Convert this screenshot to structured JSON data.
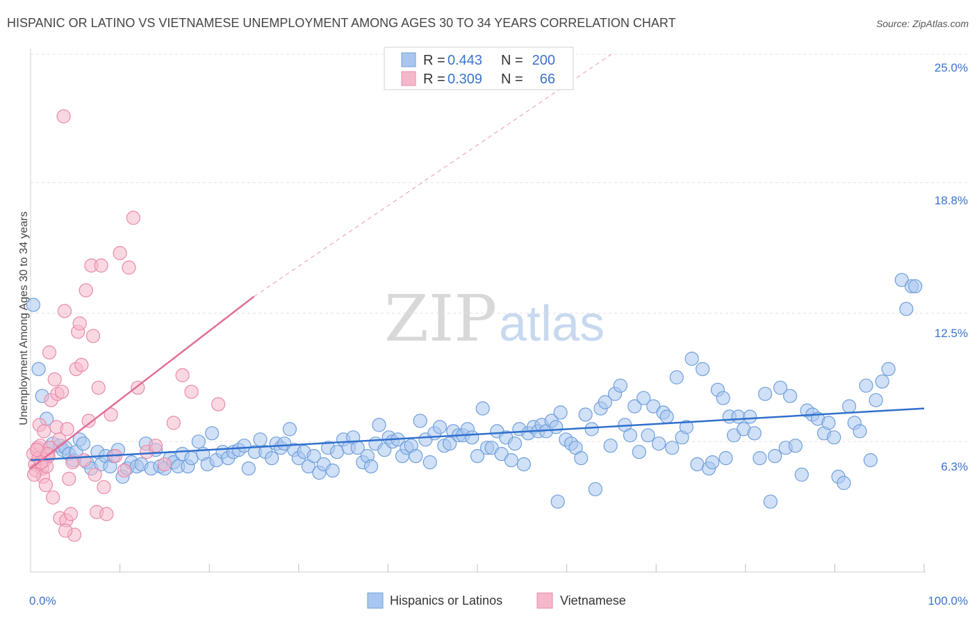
{
  "chart_data": {
    "type": "scatter",
    "title": "HISPANIC OR LATINO VS VIETNAMESE UNEMPLOYMENT AMONG AGES 30 TO 34 YEARS CORRELATION CHART",
    "source": "Source: ZipAtlas.com",
    "ylabel": "Unemployment Among Ages 30 to 34 years",
    "xlim": [
      0,
      100
    ],
    "ylim": [
      0,
      25.0
    ],
    "y_ticks": [
      {
        "value": 25.0,
        "label": "25.0%"
      },
      {
        "value": 18.8,
        "label": "18.8%"
      },
      {
        "value": 12.5,
        "label": "12.5%"
      },
      {
        "value": 6.3,
        "label": "6.3%"
      }
    ],
    "x_tick_labels": {
      "min": "0.0%",
      "max": "100.0%"
    },
    "watermark": {
      "zip": "ZIP",
      "atlas": "atlas"
    },
    "colors": {
      "blue_fill": "#a9c6ee",
      "blue_stroke": "#6f9fdc",
      "blue_line": "#2f6fcc",
      "pink_fill": "#f5b8cb",
      "pink_stroke": "#e88aa8",
      "pink_line": "#e26d97",
      "accent_text": "#3a73c9"
    },
    "legend_box": {
      "rows": [
        {
          "r_label": "R =",
          "r_value": "0.443",
          "n_label": "N =",
          "n_value": "200"
        },
        {
          "r_label": "R =",
          "r_value": "0.309",
          "n_label": "N =",
          "n_value": "66"
        }
      ]
    },
    "series": [
      {
        "name": "Hispanics or Latinos",
        "color_key": "blue",
        "trend": {
          "x0": 0,
          "y0": 5.4,
          "x1": 100,
          "y1": 7.9
        },
        "points": [
          [
            0.3,
            12.9
          ],
          [
            0.9,
            9.8
          ],
          [
            1.3,
            8.5
          ],
          [
            1.8,
            7.4
          ],
          [
            2.1,
            6.0
          ],
          [
            2.5,
            6.2
          ],
          [
            3.3,
            6.1
          ],
          [
            3.6,
            5.9
          ],
          [
            3.9,
            6.0
          ],
          [
            4.3,
            5.7
          ],
          [
            4.8,
            5.4
          ],
          [
            5.1,
            5.8
          ],
          [
            5.5,
            6.4
          ],
          [
            5.9,
            6.2
          ],
          [
            6.3,
            5.3
          ],
          [
            6.8,
            5.0
          ],
          [
            7.5,
            5.8
          ],
          [
            7.9,
            5.2
          ],
          [
            8.4,
            5.6
          ],
          [
            8.9,
            5.1
          ],
          [
            9.3,
            5.6
          ],
          [
            9.8,
            5.9
          ],
          [
            10.3,
            4.6
          ],
          [
            10.8,
            5.0
          ],
          [
            11.3,
            5.3
          ],
          [
            11.9,
            5.1
          ],
          [
            12.4,
            5.2
          ],
          [
            12.9,
            6.2
          ],
          [
            13.5,
            5.0
          ],
          [
            14.0,
            5.9
          ],
          [
            14.5,
            5.1
          ],
          [
            15.0,
            5.0
          ],
          [
            15.6,
            5.5
          ],
          [
            16.0,
            5.3
          ],
          [
            16.5,
            5.1
          ],
          [
            17.0,
            5.7
          ],
          [
            17.6,
            5.1
          ],
          [
            18.0,
            5.5
          ],
          [
            18.8,
            6.3
          ],
          [
            19.3,
            5.7
          ],
          [
            19.8,
            5.2
          ],
          [
            20.3,
            6.7
          ],
          [
            20.8,
            5.4
          ],
          [
            21.5,
            5.8
          ],
          [
            22.1,
            5.5
          ],
          [
            22.7,
            5.8
          ],
          [
            23.3,
            5.9
          ],
          [
            23.9,
            6.1
          ],
          [
            24.4,
            5.0
          ],
          [
            25.1,
            5.8
          ],
          [
            25.7,
            6.4
          ],
          [
            26.3,
            5.8
          ],
          [
            27.0,
            5.5
          ],
          [
            27.5,
            6.2
          ],
          [
            28.0,
            6.0
          ],
          [
            28.4,
            6.2
          ],
          [
            29.0,
            6.9
          ],
          [
            29.5,
            5.9
          ],
          [
            30.0,
            5.5
          ],
          [
            30.6,
            5.8
          ],
          [
            31.1,
            5.1
          ],
          [
            31.7,
            5.6
          ],
          [
            32.3,
            4.8
          ],
          [
            32.8,
            5.2
          ],
          [
            33.3,
            6.0
          ],
          [
            33.8,
            4.9
          ],
          [
            34.3,
            5.8
          ],
          [
            35.0,
            6.4
          ],
          [
            35.6,
            6.0
          ],
          [
            36.1,
            6.5
          ],
          [
            36.6,
            6.0
          ],
          [
            37.2,
            5.3
          ],
          [
            37.7,
            5.6
          ],
          [
            38.1,
            5.1
          ],
          [
            38.6,
            6.2
          ],
          [
            39.0,
            7.1
          ],
          [
            39.6,
            5.9
          ],
          [
            40.1,
            6.5
          ],
          [
            40.5,
            6.3
          ],
          [
            41.1,
            6.4
          ],
          [
            41.6,
            5.6
          ],
          [
            42.1,
            6.0
          ],
          [
            42.6,
            6.1
          ],
          [
            43.1,
            5.6
          ],
          [
            43.6,
            7.3
          ],
          [
            44.2,
            6.4
          ],
          [
            44.7,
            5.3
          ],
          [
            45.2,
            6.7
          ],
          [
            45.8,
            7.0
          ],
          [
            46.3,
            6.1
          ],
          [
            46.9,
            6.2
          ],
          [
            47.3,
            6.8
          ],
          [
            47.9,
            6.6
          ],
          [
            48.4,
            6.6
          ],
          [
            48.9,
            6.9
          ],
          [
            49.4,
            6.5
          ],
          [
            50.0,
            5.6
          ],
          [
            50.6,
            7.9
          ],
          [
            51.1,
            6.0
          ],
          [
            51.6,
            6.0
          ],
          [
            52.2,
            6.8
          ],
          [
            52.7,
            5.7
          ],
          [
            53.2,
            6.5
          ],
          [
            53.8,
            5.4
          ],
          [
            54.2,
            6.2
          ],
          [
            54.7,
            6.9
          ],
          [
            55.2,
            5.2
          ],
          [
            55.7,
            6.7
          ],
          [
            56.3,
            7.0
          ],
          [
            56.8,
            6.8
          ],
          [
            57.2,
            7.1
          ],
          [
            57.7,
            6.8
          ],
          [
            58.3,
            7.3
          ],
          [
            58.8,
            7.0
          ],
          [
            59.3,
            7.7
          ],
          [
            59.9,
            6.4
          ],
          [
            60.5,
            6.2
          ],
          [
            61.0,
            6.0
          ],
          [
            61.6,
            5.5
          ],
          [
            62.1,
            7.6
          ],
          [
            62.8,
            6.9
          ],
          [
            63.2,
            4.0
          ],
          [
            63.8,
            7.9
          ],
          [
            64.3,
            8.2
          ],
          [
            64.9,
            6.1
          ],
          [
            65.4,
            8.6
          ],
          [
            66.0,
            9.0
          ],
          [
            66.5,
            7.1
          ],
          [
            67.1,
            6.6
          ],
          [
            67.6,
            8.0
          ],
          [
            68.1,
            5.8
          ],
          [
            68.6,
            8.4
          ],
          [
            69.1,
            6.6
          ],
          [
            69.7,
            8.0
          ],
          [
            70.3,
            6.2
          ],
          [
            70.8,
            7.7
          ],
          [
            71.2,
            7.5
          ],
          [
            71.8,
            6.0
          ],
          [
            72.3,
            9.4
          ],
          [
            72.9,
            6.5
          ],
          [
            73.4,
            7.0
          ],
          [
            74.0,
            10.3
          ],
          [
            74.6,
            5.2
          ],
          [
            75.2,
            9.8
          ],
          [
            75.9,
            5.0
          ],
          [
            76.3,
            5.3
          ],
          [
            76.9,
            8.8
          ],
          [
            77.5,
            8.4
          ],
          [
            78.2,
            7.5
          ],
          [
            78.7,
            6.6
          ],
          [
            79.2,
            7.5
          ],
          [
            79.8,
            6.9
          ],
          [
            80.5,
            7.5
          ],
          [
            81.0,
            6.7
          ],
          [
            81.6,
            5.5
          ],
          [
            82.2,
            8.6
          ],
          [
            82.8,
            3.4
          ],
          [
            83.3,
            5.6
          ],
          [
            83.9,
            8.9
          ],
          [
            84.5,
            6.0
          ],
          [
            85.0,
            8.5
          ],
          [
            85.6,
            6.1
          ],
          [
            86.3,
            4.7
          ],
          [
            86.9,
            7.8
          ],
          [
            87.5,
            7.6
          ],
          [
            88.1,
            7.4
          ],
          [
            88.8,
            6.7
          ],
          [
            89.3,
            7.2
          ],
          [
            89.9,
            6.5
          ],
          [
            90.4,
            4.6
          ],
          [
            91.0,
            4.3
          ],
          [
            91.6,
            8.0
          ],
          [
            92.2,
            7.2
          ],
          [
            92.8,
            6.8
          ],
          [
            93.5,
            9.0
          ],
          [
            94.0,
            5.4
          ],
          [
            94.6,
            8.3
          ],
          [
            95.3,
            9.2
          ],
          [
            96.0,
            9.8
          ],
          [
            97.5,
            14.1
          ],
          [
            98.0,
            12.7
          ],
          [
            98.6,
            13.8
          ],
          [
            99.0,
            13.8
          ],
          [
            59.0,
            3.4
          ],
          [
            77.8,
            5.5
          ]
        ]
      },
      {
        "name": "Vietnamese",
        "color_key": "pink",
        "trend": {
          "x0": 0,
          "y0": 5.0,
          "x1": 25,
          "y1": 13.3
        },
        "trend_ext": {
          "x0": 25,
          "y0": 13.3,
          "x1": 65,
          "y1": 25.0
        },
        "points": [
          [
            0.3,
            5.7
          ],
          [
            0.5,
            5.2
          ],
          [
            0.6,
            4.9
          ],
          [
            0.8,
            6.0
          ],
          [
            0.9,
            5.5
          ],
          [
            1.1,
            6.1
          ],
          [
            1.3,
            5.0
          ],
          [
            1.4,
            4.6
          ],
          [
            1.6,
            5.4
          ],
          [
            1.8,
            5.1
          ],
          [
            2.0,
            5.6
          ],
          [
            2.2,
            6.0
          ],
          [
            0.4,
            4.7
          ],
          [
            0.7,
            5.9
          ],
          [
            1.0,
            7.1
          ],
          [
            1.2,
            5.3
          ],
          [
            1.5,
            6.8
          ],
          [
            1.7,
            4.2
          ],
          [
            1.9,
            5.7
          ],
          [
            2.1,
            10.6
          ],
          [
            2.3,
            8.3
          ],
          [
            2.5,
            3.6
          ],
          [
            2.7,
            9.3
          ],
          [
            2.9,
            7.0
          ],
          [
            3.0,
            8.6
          ],
          [
            3.2,
            6.4
          ],
          [
            3.3,
            2.6
          ],
          [
            3.5,
            8.7
          ],
          [
            3.7,
            22.0
          ],
          [
            3.8,
            12.6
          ],
          [
            4.0,
            2.5
          ],
          [
            4.1,
            6.9
          ],
          [
            4.3,
            4.5
          ],
          [
            4.5,
            2.8
          ],
          [
            4.7,
            5.3
          ],
          [
            4.9,
            1.8
          ],
          [
            5.1,
            9.8
          ],
          [
            5.3,
            11.6
          ],
          [
            5.5,
            12.0
          ],
          [
            5.7,
            10.0
          ],
          [
            6.0,
            5.4
          ],
          [
            6.2,
            13.6
          ],
          [
            6.5,
            7.3
          ],
          [
            6.8,
            14.8
          ],
          [
            7.0,
            11.4
          ],
          [
            7.2,
            4.7
          ],
          [
            7.4,
            2.9
          ],
          [
            7.6,
            8.9
          ],
          [
            7.9,
            14.8
          ],
          [
            8.2,
            4.1
          ],
          [
            8.5,
            2.8
          ],
          [
            9.0,
            7.6
          ],
          [
            9.5,
            5.6
          ],
          [
            10.0,
            15.4
          ],
          [
            10.5,
            4.9
          ],
          [
            11.0,
            14.7
          ],
          [
            11.5,
            17.1
          ],
          [
            12.0,
            8.9
          ],
          [
            13.0,
            5.8
          ],
          [
            14.0,
            6.1
          ],
          [
            15.0,
            5.2
          ],
          [
            16.0,
            7.2
          ],
          [
            17.0,
            9.5
          ],
          [
            18.0,
            8.7
          ],
          [
            21.0,
            8.1
          ],
          [
            3.9,
            2.0
          ]
        ]
      }
    ]
  }
}
